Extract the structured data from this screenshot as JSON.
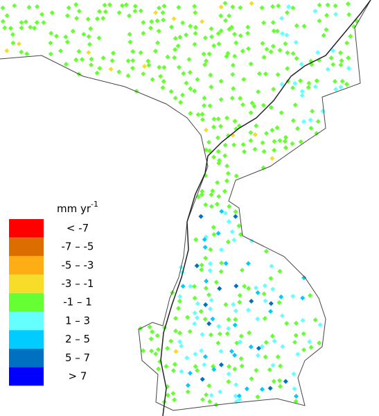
{
  "legend": {
    "title": "mm yr",
    "title_superscript": "-1",
    "classes": [
      {
        "label": "< -7",
        "color": "#ff0000"
      },
      {
        "label": "-7 – -5",
        "color": "#dc6e00"
      },
      {
        "label": "-5 – -3",
        "color": "#ffad14"
      },
      {
        "label": "-3 – -1",
        "color": "#f7dc2a"
      },
      {
        "label": "-1 – 1",
        "color": "#66ff33"
      },
      {
        "label": "1 – 3",
        "color": "#66ffff"
      },
      {
        "label": "2 – 5",
        "color": "#00ccff"
      },
      {
        "label": "5 – 7",
        "color": "#0070c0"
      },
      {
        "label": "> 7",
        "color": "#0000ff"
      }
    ]
  }
}
